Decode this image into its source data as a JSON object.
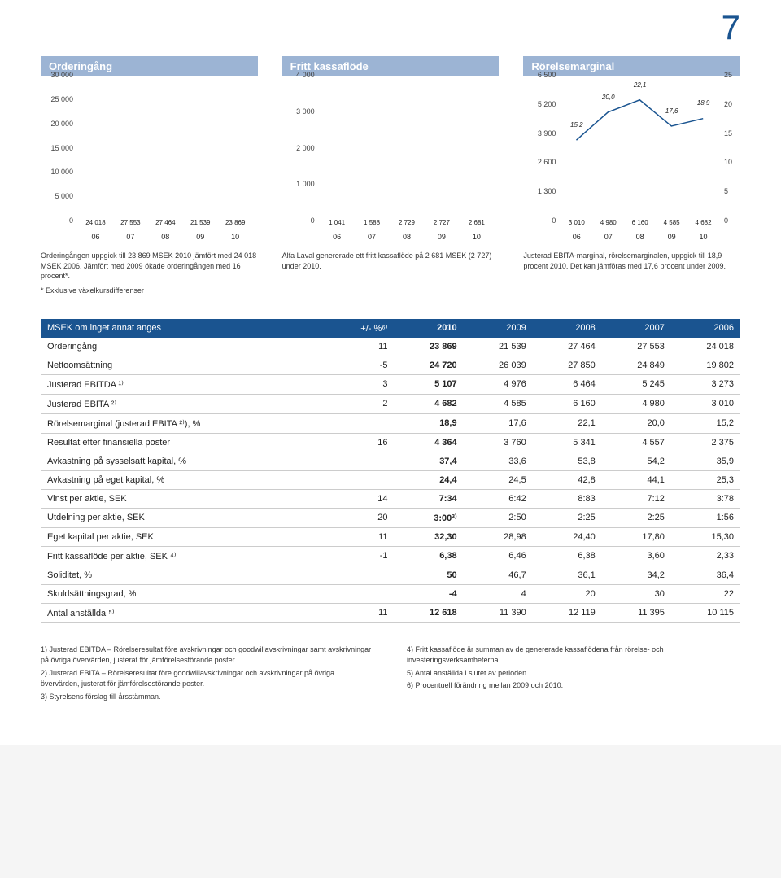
{
  "page_number": "7",
  "chart1": {
    "title": "Orderingång",
    "type": "bar",
    "categories": [
      "06",
      "07",
      "08",
      "09",
      "10"
    ],
    "yticks": [
      "0",
      "5 000",
      "10 000",
      "15 000",
      "20 000",
      "25 000",
      "30 000"
    ],
    "ymax": 30000,
    "values": [
      24018,
      27553,
      27464,
      21539,
      23869
    ],
    "labels": [
      "24 018",
      "27 553",
      "27 464",
      "21 539",
      "23 869"
    ],
    "bar_color": "#6a8db8",
    "bar_color_last": "#1a5490",
    "caption": "Orderingången uppgick till 23 869 MSEK 2010 jämfört med 24 018 MSEK 2006. Jämfört med 2009 ökade orderingången med 16 procent*."
  },
  "chart2": {
    "title": "Fritt kassaflöde",
    "type": "bar",
    "categories": [
      "06",
      "07",
      "08",
      "09",
      "10"
    ],
    "yticks": [
      "0",
      "1 000",
      "2 000",
      "3 000",
      "4 000"
    ],
    "ymax": 4000,
    "values": [
      1041,
      1588,
      2729,
      2727,
      2681
    ],
    "labels": [
      "1 041",
      "1 588",
      "2 729",
      "2 727",
      "2 681"
    ],
    "bar_color": "#6a8db8",
    "bar_color_last": "#1a5490",
    "caption": "Alfa Laval genererade ett fritt kassaflöde på 2 681 MSEK (2 727) under 2010."
  },
  "chart3": {
    "title": "Rörelsemarginal",
    "type": "bar+line",
    "categories": [
      "06",
      "07",
      "08",
      "09",
      "10"
    ],
    "yticks_l": [
      "0",
      "1 300",
      "2 600",
      "3 900",
      "5 200",
      "6 500"
    ],
    "yticks_r": [
      "0",
      "5",
      "10",
      "15",
      "20",
      "25"
    ],
    "ymax_l": 6500,
    "ymax_r": 25,
    "bar_values": [
      3010,
      4980,
      6160,
      4585,
      4682
    ],
    "bar_labels": [
      "3 010",
      "4 980",
      "6 160",
      "4 585",
      "4 682"
    ],
    "line_values": [
      15.2,
      20.0,
      22.1,
      17.6,
      18.9
    ],
    "line_labels": [
      "15,2",
      "20,0",
      "22,1",
      "17,6",
      "18,9"
    ],
    "bar_color": "#6a8db8",
    "bar_color_last": "#1a5490",
    "line_color": "#1a5490",
    "caption": "Justerad EBITA-marginal, rörelsemarginalen, uppgick till 18,9 procent 2010. Det kan jämföras med 17,6 procent under 2009."
  },
  "charts_footnote": "* Exklusive växelkursdifferenser",
  "table": {
    "header_first": "MSEK om inget annat anges",
    "columns": [
      "+/- %⁶⁾",
      "2010",
      "2009",
      "2008",
      "2007",
      "2006"
    ],
    "rows": [
      [
        "Orderingång",
        "11",
        "23 869",
        "21 539",
        "27 464",
        "27 553",
        "24 018"
      ],
      [
        "Nettoomsättning",
        "-5",
        "24 720",
        "26 039",
        "27 850",
        "24 849",
        "19 802"
      ],
      [
        "Justerad EBITDA ¹⁾",
        "3",
        "5 107",
        "4 976",
        "6 464",
        "5 245",
        "3 273"
      ],
      [
        "Justerad EBITA ²⁾",
        "2",
        "4 682",
        "4 585",
        "6 160",
        "4 980",
        "3 010"
      ],
      [
        "Rörelsemarginal (justerad EBITA ²⁾), %",
        "",
        "18,9",
        "17,6",
        "22,1",
        "20,0",
        "15,2"
      ],
      [
        "Resultat efter finansiella poster",
        "16",
        "4 364",
        "3 760",
        "5 341",
        "4 557",
        "2 375"
      ],
      [
        "Avkastning på sysselsatt kapital, %",
        "",
        "37,4",
        "33,6",
        "53,8",
        "54,2",
        "35,9"
      ],
      [
        "Avkastning på eget kapital, %",
        "",
        "24,4",
        "24,5",
        "42,8",
        "44,1",
        "25,3"
      ],
      [
        "Vinst per aktie, SEK",
        "14",
        "7:34",
        "6:42",
        "8:83",
        "7:12",
        "3:78"
      ],
      [
        "Utdelning per aktie, SEK",
        "20",
        "3:00³⁾",
        "2:50",
        "2:25",
        "2:25",
        "1:56"
      ],
      [
        "Eget kapital per aktie, SEK",
        "11",
        "32,30",
        "28,98",
        "24,40",
        "17,80",
        "15,30"
      ],
      [
        "Fritt kassaflöde per aktie, SEK ⁴⁾",
        "-1",
        "6,38",
        "6,46",
        "6,38",
        "3,60",
        "2,33"
      ],
      [
        "Soliditet, %",
        "",
        "50",
        "46,7",
        "36,1",
        "34,2",
        "36,4"
      ],
      [
        "Skuldsättningsgrad, %",
        "",
        "-4",
        "4",
        "20",
        "30",
        "22"
      ],
      [
        "Antal anställda ⁵⁾",
        "11",
        "12 618",
        "11 390",
        "12 119",
        "11 395",
        "10 115"
      ]
    ]
  },
  "notes_left": [
    "1) Justerad EBITDA – Rörelseresultat före avskrivningar och goodwillavskrivningar samt avskrivningar på övriga övervärden, justerat för jämförelsestörande poster.",
    "2) Justerad EBITA – Rörelseresultat före goodwillavskrivningar och avskrivningar på övriga övervärden, justerat för jämförelsestörande poster.",
    "3) Styrelsens förslag till årsstämman."
  ],
  "notes_right": [
    "4) Fritt kassaflöde är summan av de genererade kassaflödena från rörelse- och investeringsverksamheterna.",
    "5) Antal anställda i slutet av perioden.",
    "6) Procentuell förändring mellan 2009 och 2010."
  ]
}
